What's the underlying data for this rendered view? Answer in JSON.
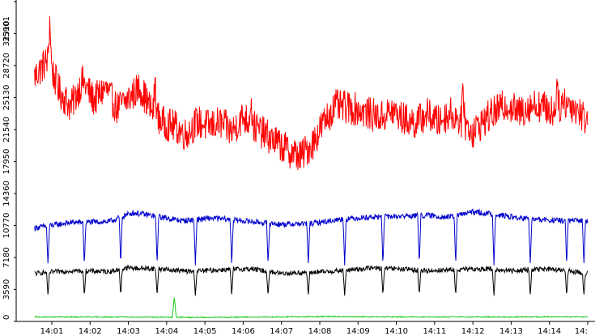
{
  "chart_data": {
    "type": "line",
    "colors": {
      "background": "#ffffff",
      "axis_band": "#ffffff",
      "series_red": "#ff0000",
      "series_blue": "#0000cc",
      "series_black": "#000000",
      "series_green": "#22cc22"
    },
    "y_axis": {
      "ticks": [
        "0",
        "3590",
        "7180",
        "10770",
        "14360",
        "17950",
        "21540",
        "25130",
        "28720",
        "32310",
        "35901"
      ],
      "range": [
        0,
        35901
      ],
      "orientation": "rotated vertical text"
    },
    "x_axis": {
      "ticks": [
        "14:01",
        "14:02",
        "14:03",
        "14:04",
        "14:05",
        "14:06",
        "14:07",
        "14:08",
        "14:09",
        "14:10",
        "14:11",
        "14:12",
        "14:13",
        "14:14",
        "14:"
      ],
      "range_minutes": [
        0.55,
        15.0
      ]
    },
    "grid": false,
    "legend": "none",
    "series": [
      {
        "color_key": "series_red",
        "values": [
          [
            0.55,
            27500
          ],
          [
            0.9,
            29400
          ],
          [
            1.2,
            25800
          ],
          [
            1.5,
            24100
          ],
          [
            1.8,
            27000
          ],
          [
            2.1,
            24800
          ],
          [
            2.4,
            26200
          ],
          [
            2.7,
            23900
          ],
          [
            3.0,
            25000
          ],
          [
            3.3,
            26300
          ],
          [
            3.6,
            23700
          ],
          [
            3.9,
            22300
          ],
          [
            4.2,
            21900
          ],
          [
            4.5,
            21000
          ],
          [
            4.8,
            22400
          ],
          [
            5.1,
            21900
          ],
          [
            5.4,
            22300
          ],
          [
            5.7,
            21300
          ],
          [
            6.0,
            23000
          ],
          [
            6.3,
            21800
          ],
          [
            6.6,
            20900
          ],
          [
            6.9,
            20000
          ],
          [
            7.2,
            19100
          ],
          [
            7.5,
            18500
          ],
          [
            7.8,
            19900
          ],
          [
            8.1,
            22300
          ],
          [
            8.4,
            24200
          ],
          [
            8.7,
            24000
          ],
          [
            9.0,
            23800
          ],
          [
            9.3,
            23300
          ],
          [
            9.6,
            22900
          ],
          [
            9.9,
            23600
          ],
          [
            10.2,
            22700
          ],
          [
            10.5,
            22300
          ],
          [
            10.8,
            23300
          ],
          [
            11.1,
            22400
          ],
          [
            11.4,
            23400
          ],
          [
            11.7,
            22500
          ],
          [
            12.0,
            21300
          ],
          [
            12.3,
            22600
          ],
          [
            12.6,
            23600
          ],
          [
            12.9,
            24400
          ],
          [
            13.2,
            23400
          ],
          [
            13.5,
            24300
          ],
          [
            13.8,
            24200
          ],
          [
            14.1,
            23500
          ],
          [
            14.4,
            24700
          ],
          [
            14.7,
            23900
          ],
          [
            15.0,
            22500
          ]
        ],
        "noise": 1900,
        "spikes": [
          [
            0.95,
            5200
          ],
          [
            3.7,
            3800
          ],
          [
            6.2,
            3000
          ],
          [
            11.75,
            3600
          ],
          [
            14.2,
            3500
          ]
        ]
      },
      {
        "color_key": "series_blue",
        "values": [
          [
            0.55,
            10500
          ],
          [
            1.5,
            11100
          ],
          [
            2.5,
            11200
          ],
          [
            3.1,
            12200
          ],
          [
            3.6,
            11900
          ],
          [
            4.4,
            11300
          ],
          [
            5.2,
            11600
          ],
          [
            6.0,
            11300
          ],
          [
            7.0,
            10900
          ],
          [
            7.8,
            11000
          ],
          [
            8.6,
            11500
          ],
          [
            9.3,
            11700
          ],
          [
            10.0,
            11800
          ],
          [
            10.8,
            11900
          ],
          [
            11.4,
            11700
          ],
          [
            12.0,
            12300
          ],
          [
            12.6,
            12000
          ],
          [
            13.2,
            11600
          ],
          [
            13.8,
            11400
          ],
          [
            14.4,
            11300
          ],
          [
            15.0,
            11300
          ]
        ],
        "noise": 320,
        "dips": [
          0.9,
          1.85,
          2.8,
          3.75,
          4.75,
          5.7,
          6.65,
          7.7,
          8.65,
          9.65,
          10.6,
          11.55,
          12.55,
          13.5,
          14.45,
          14.9
        ],
        "dip_value": 6300
      },
      {
        "color_key": "series_black",
        "values": [
          [
            0.55,
            5400
          ],
          [
            1.5,
            5700
          ],
          [
            2.5,
            5600
          ],
          [
            3.0,
            6000
          ],
          [
            3.8,
            5900
          ],
          [
            4.6,
            5600
          ],
          [
            5.4,
            5800
          ],
          [
            6.2,
            5900
          ],
          [
            7.0,
            5400
          ],
          [
            7.8,
            5500
          ],
          [
            8.6,
            5700
          ],
          [
            9.3,
            6000
          ],
          [
            10.0,
            5900
          ],
          [
            10.8,
            5700
          ],
          [
            11.6,
            5800
          ],
          [
            12.3,
            5900
          ],
          [
            13.0,
            5700
          ],
          [
            13.8,
            5900
          ],
          [
            14.4,
            5700
          ],
          [
            15.0,
            5400
          ]
        ],
        "noise": 280,
        "dips": [
          0.9,
          1.85,
          2.8,
          3.75,
          4.75,
          5.7,
          6.65,
          7.7,
          8.65,
          9.65,
          10.6,
          11.55,
          12.55,
          13.5,
          14.45,
          14.9
        ],
        "dip_value": 2900
      },
      {
        "color_key": "series_green",
        "values": [
          [
            0.55,
            500
          ],
          [
            3.0,
            500
          ],
          [
            5.0,
            450
          ],
          [
            8.0,
            550
          ],
          [
            11.0,
            500
          ],
          [
            15.0,
            520
          ]
        ],
        "noise": 60,
        "spikes": [
          [
            4.2,
            2300
          ]
        ]
      }
    ]
  }
}
